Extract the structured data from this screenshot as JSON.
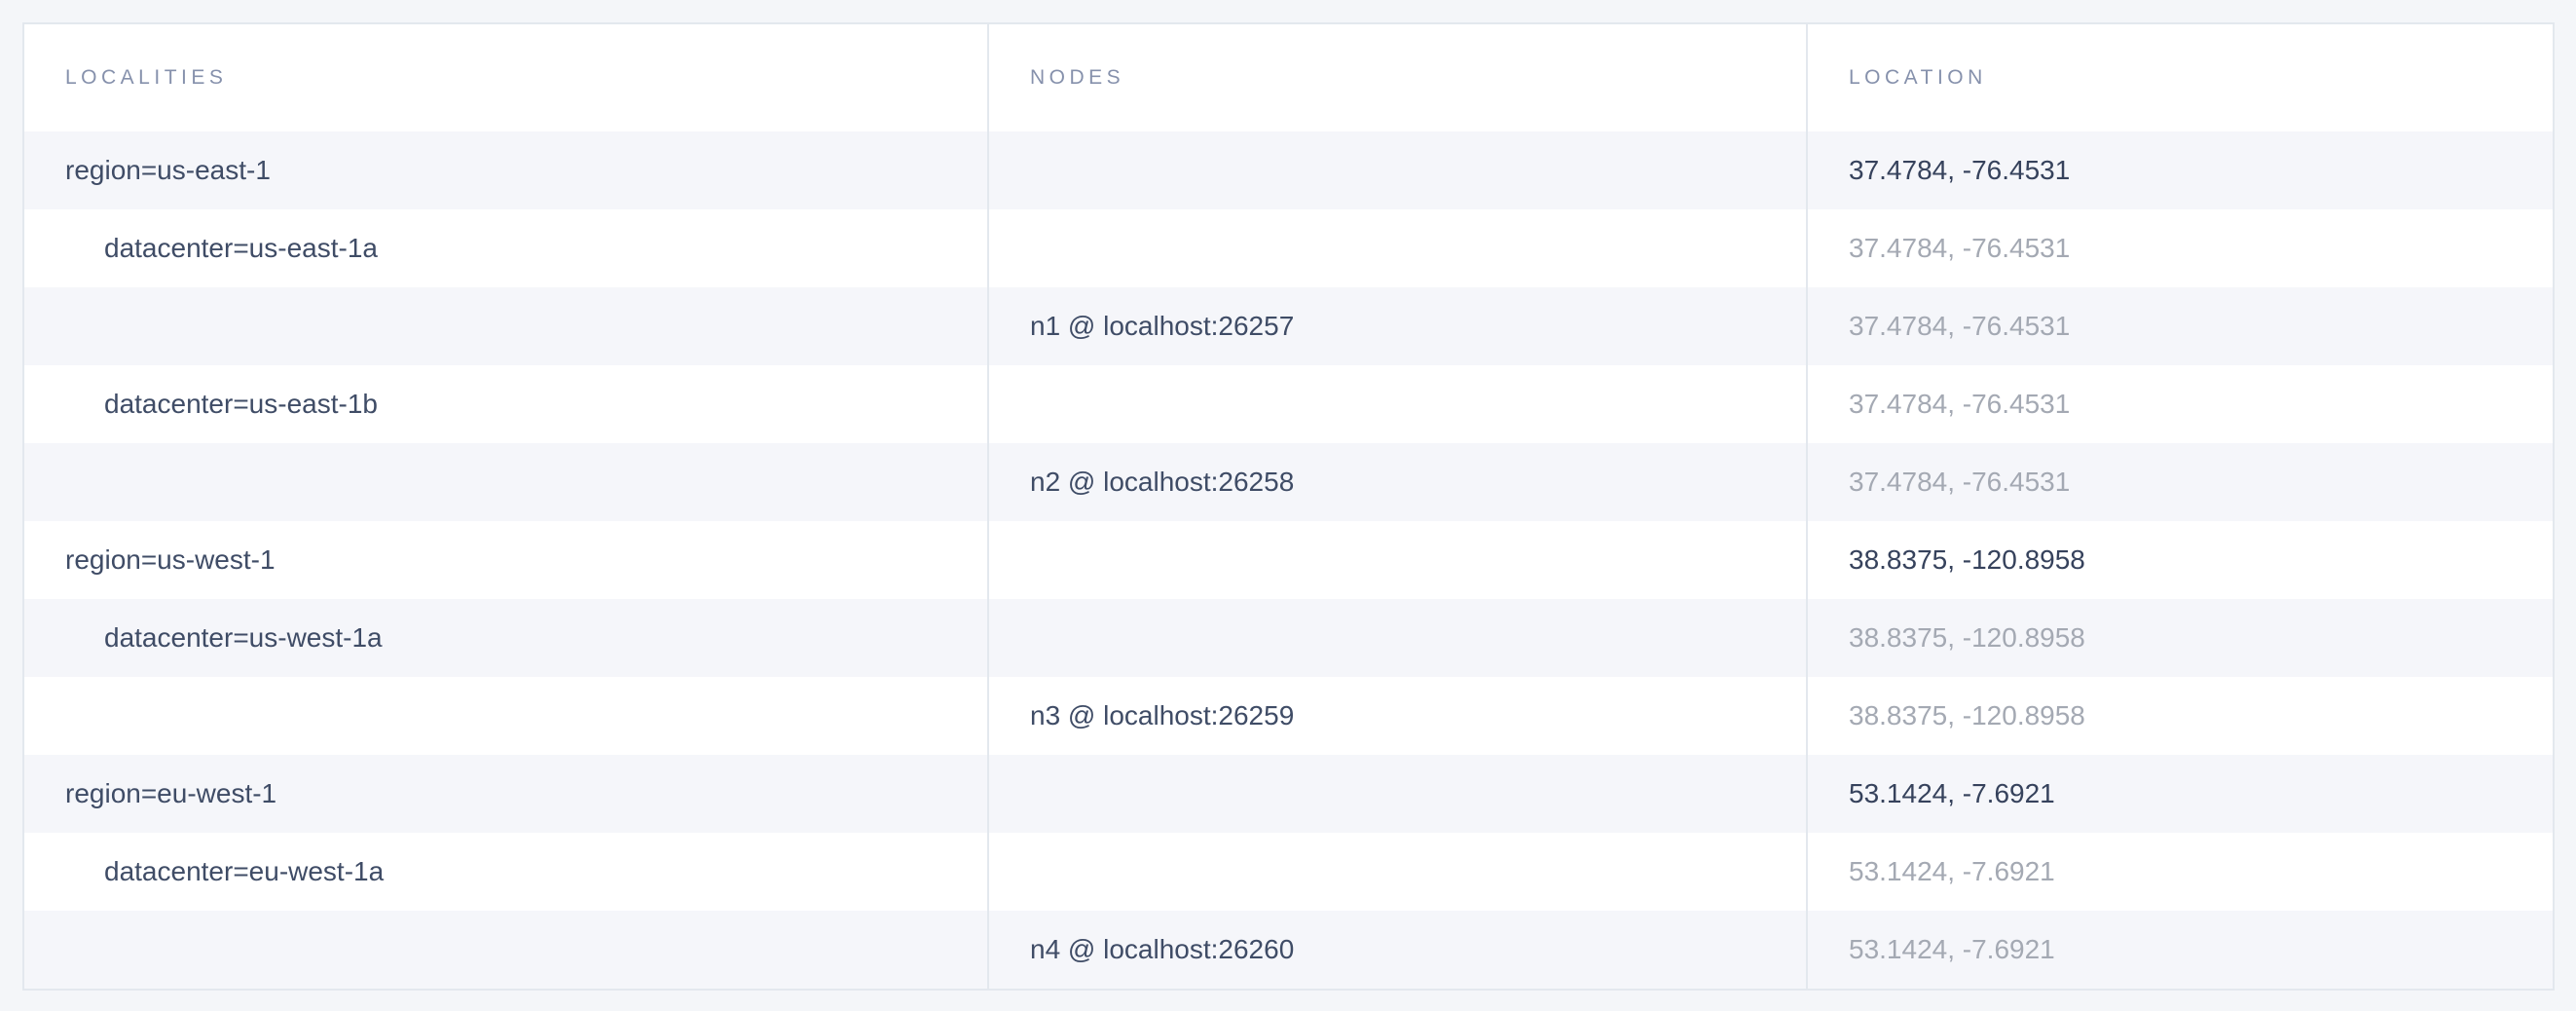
{
  "page": {
    "background_color": "#f4f6f9"
  },
  "table": {
    "columns": [
      {
        "key": "localities",
        "label": "LOCALITIES"
      },
      {
        "key": "nodes",
        "label": "NODES"
      },
      {
        "key": "location",
        "label": "LOCATION"
      }
    ],
    "rows": [
      {
        "type": "region",
        "locality": "region=us-east-1",
        "node": "",
        "location": "37.4784, -76.4531",
        "location_emphasis": "dark"
      },
      {
        "type": "datacenter",
        "locality": "datacenter=us-east-1a",
        "node": "",
        "location": "37.4784, -76.4531",
        "location_emphasis": "muted"
      },
      {
        "type": "node",
        "locality": "",
        "node": "n1 @ localhost:26257",
        "location": "37.4784, -76.4531",
        "location_emphasis": "muted"
      },
      {
        "type": "datacenter",
        "locality": "datacenter=us-east-1b",
        "node": "",
        "location": "37.4784, -76.4531",
        "location_emphasis": "muted"
      },
      {
        "type": "node",
        "locality": "",
        "node": "n2 @ localhost:26258",
        "location": "37.4784, -76.4531",
        "location_emphasis": "muted"
      },
      {
        "type": "region",
        "locality": "region=us-west-1",
        "node": "",
        "location": "38.8375, -120.8958",
        "location_emphasis": "dark"
      },
      {
        "type": "datacenter",
        "locality": "datacenter=us-west-1a",
        "node": "",
        "location": "38.8375, -120.8958",
        "location_emphasis": "muted"
      },
      {
        "type": "node",
        "locality": "",
        "node": "n3 @ localhost:26259",
        "location": "38.8375, -120.8958",
        "location_emphasis": "muted"
      },
      {
        "type": "region",
        "locality": "region=eu-west-1",
        "node": "",
        "location": "53.1424, -7.6921",
        "location_emphasis": "dark"
      },
      {
        "type": "datacenter",
        "locality": "datacenter=eu-west-1a",
        "node": "",
        "location": "53.1424, -7.6921",
        "location_emphasis": "muted"
      },
      {
        "type": "node",
        "locality": "",
        "node": "n4 @ localhost:26260",
        "location": "53.1424, -7.6921",
        "location_emphasis": "muted"
      }
    ],
    "colors": {
      "stripe_row_bg": "#f5f6fa",
      "plain_row_bg": "#ffffff",
      "border": "#e3e8ee",
      "header_text": "#8691ac",
      "cell_text_dark": "#3f4c66",
      "cell_text_muted": "#a4a9b3"
    }
  }
}
